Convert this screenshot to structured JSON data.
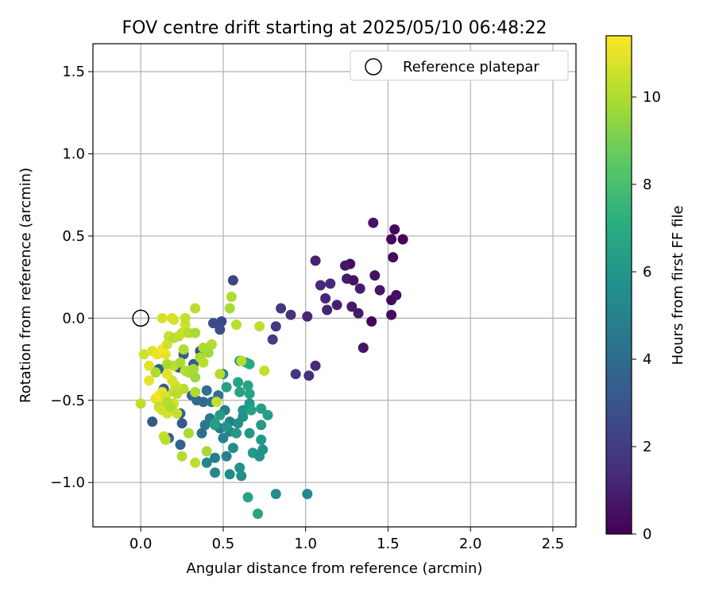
{
  "chart_data": {
    "type": "scatter",
    "title": "FOV centre drift starting at 2025/05/10 06:48:22",
    "xlabel": "Angular distance from reference (arcmin)",
    "ylabel": "Rotation from reference (arcmin)",
    "xlim": [
      -0.29,
      2.64
    ],
    "ylim": [
      -1.27,
      1.67
    ],
    "xticks": [
      0.0,
      0.5,
      1.0,
      1.5,
      2.0,
      2.5
    ],
    "xtick_labels": [
      "0.0",
      "0.5",
      "1.0",
      "1.5",
      "2.0",
      "2.5"
    ],
    "yticks": [
      -1.0,
      -0.5,
      0.0,
      0.5,
      1.0,
      1.5
    ],
    "ytick_labels": [
      "−1.0",
      "−0.5",
      "0.0",
      "0.5",
      "1.0",
      "1.5"
    ],
    "grid": true,
    "colormap": "viridis",
    "colorbar": {
      "label": "Hours from first FF file",
      "range": [
        0,
        11.4
      ],
      "ticks": [
        0,
        2,
        4,
        6,
        8,
        10
      ],
      "tick_labels": [
        "0",
        "2",
        "4",
        "6",
        "8",
        "10"
      ]
    },
    "legend": {
      "placement": "top-right",
      "entries": [
        {
          "label": "Reference platepar",
          "marker": "open-circle"
        }
      ]
    },
    "reference_point": {
      "x": 0.0,
      "y": 0.0
    },
    "series": [
      {
        "name": "",
        "points": [
          [
            1.4,
            -0.02,
            0.2
          ],
          [
            1.35,
            -0.18,
            0.6
          ],
          [
            1.52,
            0.02,
            0.4
          ],
          [
            1.52,
            0.11,
            0.3
          ],
          [
            1.55,
            0.14,
            0.5
          ],
          [
            1.45,
            0.17,
            0.7
          ],
          [
            1.33,
            0.18,
            0.9
          ],
          [
            1.28,
            0.07,
            0.8
          ],
          [
            1.19,
            0.08,
            1.0
          ],
          [
            1.13,
            0.05,
            1.1
          ],
          [
            1.12,
            0.12,
            1.2
          ],
          [
            1.09,
            0.2,
            1.3
          ],
          [
            1.15,
            0.21,
            1.4
          ],
          [
            1.25,
            0.24,
            0.9
          ],
          [
            1.29,
            0.23,
            0.6
          ],
          [
            1.42,
            0.26,
            0.5
          ],
          [
            1.27,
            0.33,
            0.4
          ],
          [
            1.24,
            0.32,
            0.7
          ],
          [
            1.06,
            0.35,
            1.1
          ],
          [
            1.53,
            0.37,
            0.3
          ],
          [
            1.52,
            0.48,
            0.2
          ],
          [
            1.59,
            0.48,
            0.1
          ],
          [
            1.54,
            0.54,
            0.3
          ],
          [
            1.41,
            0.58,
            0.6
          ],
          [
            1.01,
            0.01,
            1.3
          ],
          [
            0.91,
            0.02,
            1.6
          ],
          [
            0.85,
            0.06,
            1.8
          ],
          [
            0.82,
            -0.05,
            1.9
          ],
          [
            0.8,
            -0.13,
            2.0
          ],
          [
            0.94,
            -0.34,
            1.7
          ],
          [
            1.02,
            -0.35,
            1.5
          ],
          [
            1.06,
            -0.29,
            1.4
          ],
          [
            1.32,
            0.03,
            0.8
          ],
          [
            0.56,
            0.23,
            2.3
          ],
          [
            0.49,
            -0.02,
            2.5
          ],
          [
            0.44,
            -0.03,
            2.6
          ],
          [
            0.48,
            -0.07,
            2.7
          ],
          [
            0.36,
            -0.2,
            3.0
          ],
          [
            0.32,
            -0.28,
            3.2
          ],
          [
            0.26,
            -0.22,
            3.3
          ],
          [
            0.23,
            -0.3,
            3.4
          ],
          [
            0.11,
            -0.31,
            3.4
          ],
          [
            0.14,
            -0.43,
            3.3
          ],
          [
            0.24,
            -0.58,
            3.5
          ],
          [
            0.25,
            -0.64,
            3.2
          ],
          [
            0.07,
            -0.63,
            3.1
          ],
          [
            0.17,
            -0.73,
            3.4
          ],
          [
            0.24,
            -0.77,
            3.6
          ],
          [
            0.31,
            -0.47,
            3.8
          ],
          [
            0.34,
            -0.5,
            4.0
          ],
          [
            0.4,
            -0.44,
            4.1
          ],
          [
            0.43,
            -0.51,
            4.4
          ],
          [
            0.47,
            -0.47,
            4.3
          ],
          [
            0.38,
            -0.51,
            3.9
          ],
          [
            0.42,
            -0.61,
            4.5
          ],
          [
            0.48,
            -0.67,
            4.6
          ],
          [
            0.51,
            -0.56,
            4.7
          ],
          [
            0.54,
            -0.63,
            4.8
          ],
          [
            0.39,
            -0.65,
            4.6
          ],
          [
            0.37,
            -0.7,
            4.2
          ],
          [
            0.45,
            -0.85,
            4.8
          ],
          [
            0.52,
            -0.84,
            5.0
          ],
          [
            0.4,
            -0.88,
            5.1
          ],
          [
            0.45,
            -0.94,
            5.2
          ],
          [
            0.54,
            -0.95,
            5.4
          ],
          [
            0.61,
            -0.96,
            5.6
          ],
          [
            0.6,
            -0.91,
            5.7
          ],
          [
            0.5,
            -0.73,
            5.0
          ],
          [
            0.54,
            -0.69,
            5.2
          ],
          [
            0.56,
            -0.79,
            5.5
          ],
          [
            0.59,
            -0.64,
            5.6
          ],
          [
            0.62,
            -0.6,
            5.7
          ],
          [
            0.62,
            -0.56,
            5.8
          ],
          [
            0.66,
            -0.52,
            5.9
          ],
          [
            0.66,
            -0.7,
            6.0
          ],
          [
            0.68,
            -0.82,
            6.1
          ],
          [
            0.72,
            -0.84,
            5.9
          ],
          [
            0.74,
            -0.8,
            5.8
          ],
          [
            0.73,
            -0.74,
            6.1
          ],
          [
            0.73,
            -0.65,
            6.2
          ],
          [
            0.77,
            -0.59,
            6.3
          ],
          [
            0.73,
            -0.55,
            6.4
          ],
          [
            0.67,
            -0.56,
            6.5
          ],
          [
            0.66,
            -0.46,
            6.6
          ],
          [
            0.65,
            -0.41,
            6.7
          ],
          [
            0.59,
            -0.39,
            6.7
          ],
          [
            0.6,
            -0.45,
            6.6
          ],
          [
            0.52,
            -0.42,
            6.5
          ],
          [
            0.6,
            -0.26,
            5.9
          ],
          [
            0.5,
            -0.34,
            5.2
          ],
          [
            0.64,
            -0.27,
            6.8
          ],
          [
            0.66,
            -0.28,
            7.0
          ],
          [
            0.45,
            -0.65,
            6.2
          ],
          [
            0.45,
            -0.64,
            6.4
          ],
          [
            0.48,
            -0.59,
            6.3
          ],
          [
            0.65,
            -1.09,
            6.6
          ],
          [
            0.71,
            -1.19,
            6.7
          ],
          [
            0.82,
            -1.07,
            5.5
          ],
          [
            1.01,
            -1.07,
            5.2
          ],
          [
            0.52,
            -0.66,
            6.0
          ],
          [
            0.58,
            -0.7,
            6.1
          ],
          [
            0.0,
            -0.52,
            10.3
          ],
          [
            0.02,
            -0.22,
            10.6
          ],
          [
            0.05,
            -0.29,
            10.9
          ],
          [
            0.05,
            -0.38,
            11.0
          ],
          [
            0.07,
            -0.2,
            10.8
          ],
          [
            0.1,
            -0.22,
            11.1
          ],
          [
            0.09,
            -0.49,
            10.9
          ],
          [
            0.11,
            -0.47,
            11.2
          ],
          [
            0.12,
            -0.52,
            11.1
          ],
          [
            0.13,
            -0.45,
            11.0
          ],
          [
            0.15,
            -0.48,
            10.8
          ],
          [
            0.16,
            -0.58,
            10.7
          ],
          [
            0.14,
            -0.72,
            10.5
          ],
          [
            0.17,
            -0.55,
            10.9
          ],
          [
            0.2,
            -0.52,
            10.6
          ],
          [
            0.22,
            -0.58,
            10.4
          ],
          [
            0.26,
            -0.43,
            10.2
          ],
          [
            0.21,
            -0.41,
            10.5
          ],
          [
            0.19,
            -0.38,
            10.7
          ],
          [
            0.16,
            -0.34,
            11.0
          ],
          [
            0.2,
            -0.29,
            10.3
          ],
          [
            0.15,
            -0.22,
            10.9
          ],
          [
            0.13,
            -0.19,
            11.2
          ],
          [
            0.16,
            -0.16,
            10.6
          ],
          [
            0.17,
            -0.11,
            10.5
          ],
          [
            0.2,
            -0.12,
            10.1
          ],
          [
            0.23,
            -0.11,
            10.2
          ],
          [
            0.25,
            -0.09,
            10.4
          ],
          [
            0.27,
            -0.04,
            10.6
          ],
          [
            0.29,
            -0.09,
            10.1
          ],
          [
            0.33,
            -0.09,
            9.9
          ],
          [
            0.26,
            -0.19,
            10.0
          ],
          [
            0.24,
            -0.27,
            9.9
          ],
          [
            0.27,
            -0.32,
            10.1
          ],
          [
            0.29,
            -0.33,
            10.0
          ],
          [
            0.32,
            -0.31,
            9.8
          ],
          [
            0.33,
            -0.36,
            9.7
          ],
          [
            0.36,
            -0.24,
            9.9
          ],
          [
            0.38,
            -0.18,
            10.0
          ],
          [
            0.4,
            -0.19,
            9.9
          ],
          [
            0.41,
            -0.21,
            9.8
          ],
          [
            0.43,
            -0.16,
            10.0
          ],
          [
            0.38,
            -0.27,
            10.2
          ],
          [
            0.48,
            -0.34,
            10.1
          ],
          [
            0.33,
            -0.45,
            10.0
          ],
          [
            0.33,
            -0.88,
            10.2
          ],
          [
            0.25,
            -0.84,
            10.1
          ],
          [
            0.4,
            -0.81,
            9.8
          ],
          [
            0.29,
            -0.7,
            9.9
          ],
          [
            0.46,
            -0.51,
            10.4
          ],
          [
            0.54,
            0.06,
            9.9
          ],
          [
            0.55,
            0.13,
            10.0
          ],
          [
            0.58,
            -0.04,
            10.2
          ],
          [
            0.61,
            -0.26,
            10.1
          ],
          [
            0.72,
            -0.05,
            10.3
          ],
          [
            0.75,
            -0.32,
            10.4
          ],
          [
            0.33,
            0.06,
            10.2
          ],
          [
            0.27,
            0.0,
            10.4
          ],
          [
            0.13,
            0.0,
            10.7
          ],
          [
            0.19,
            0.0,
            10.8
          ],
          [
            0.2,
            -0.01,
            10.7
          ],
          [
            0.11,
            -0.54,
            10.4
          ],
          [
            0.13,
            -0.56,
            10.6
          ],
          [
            0.2,
            -0.45,
            10.3
          ],
          [
            0.22,
            -0.46,
            10.2
          ],
          [
            0.18,
            -0.54,
            10.0
          ],
          [
            0.16,
            -0.51,
            10.1
          ],
          [
            0.15,
            -0.74,
            10.2
          ],
          [
            0.16,
            -0.28,
            9.9
          ],
          [
            0.09,
            -0.33,
            10.0
          ]
        ]
      }
    ]
  }
}
